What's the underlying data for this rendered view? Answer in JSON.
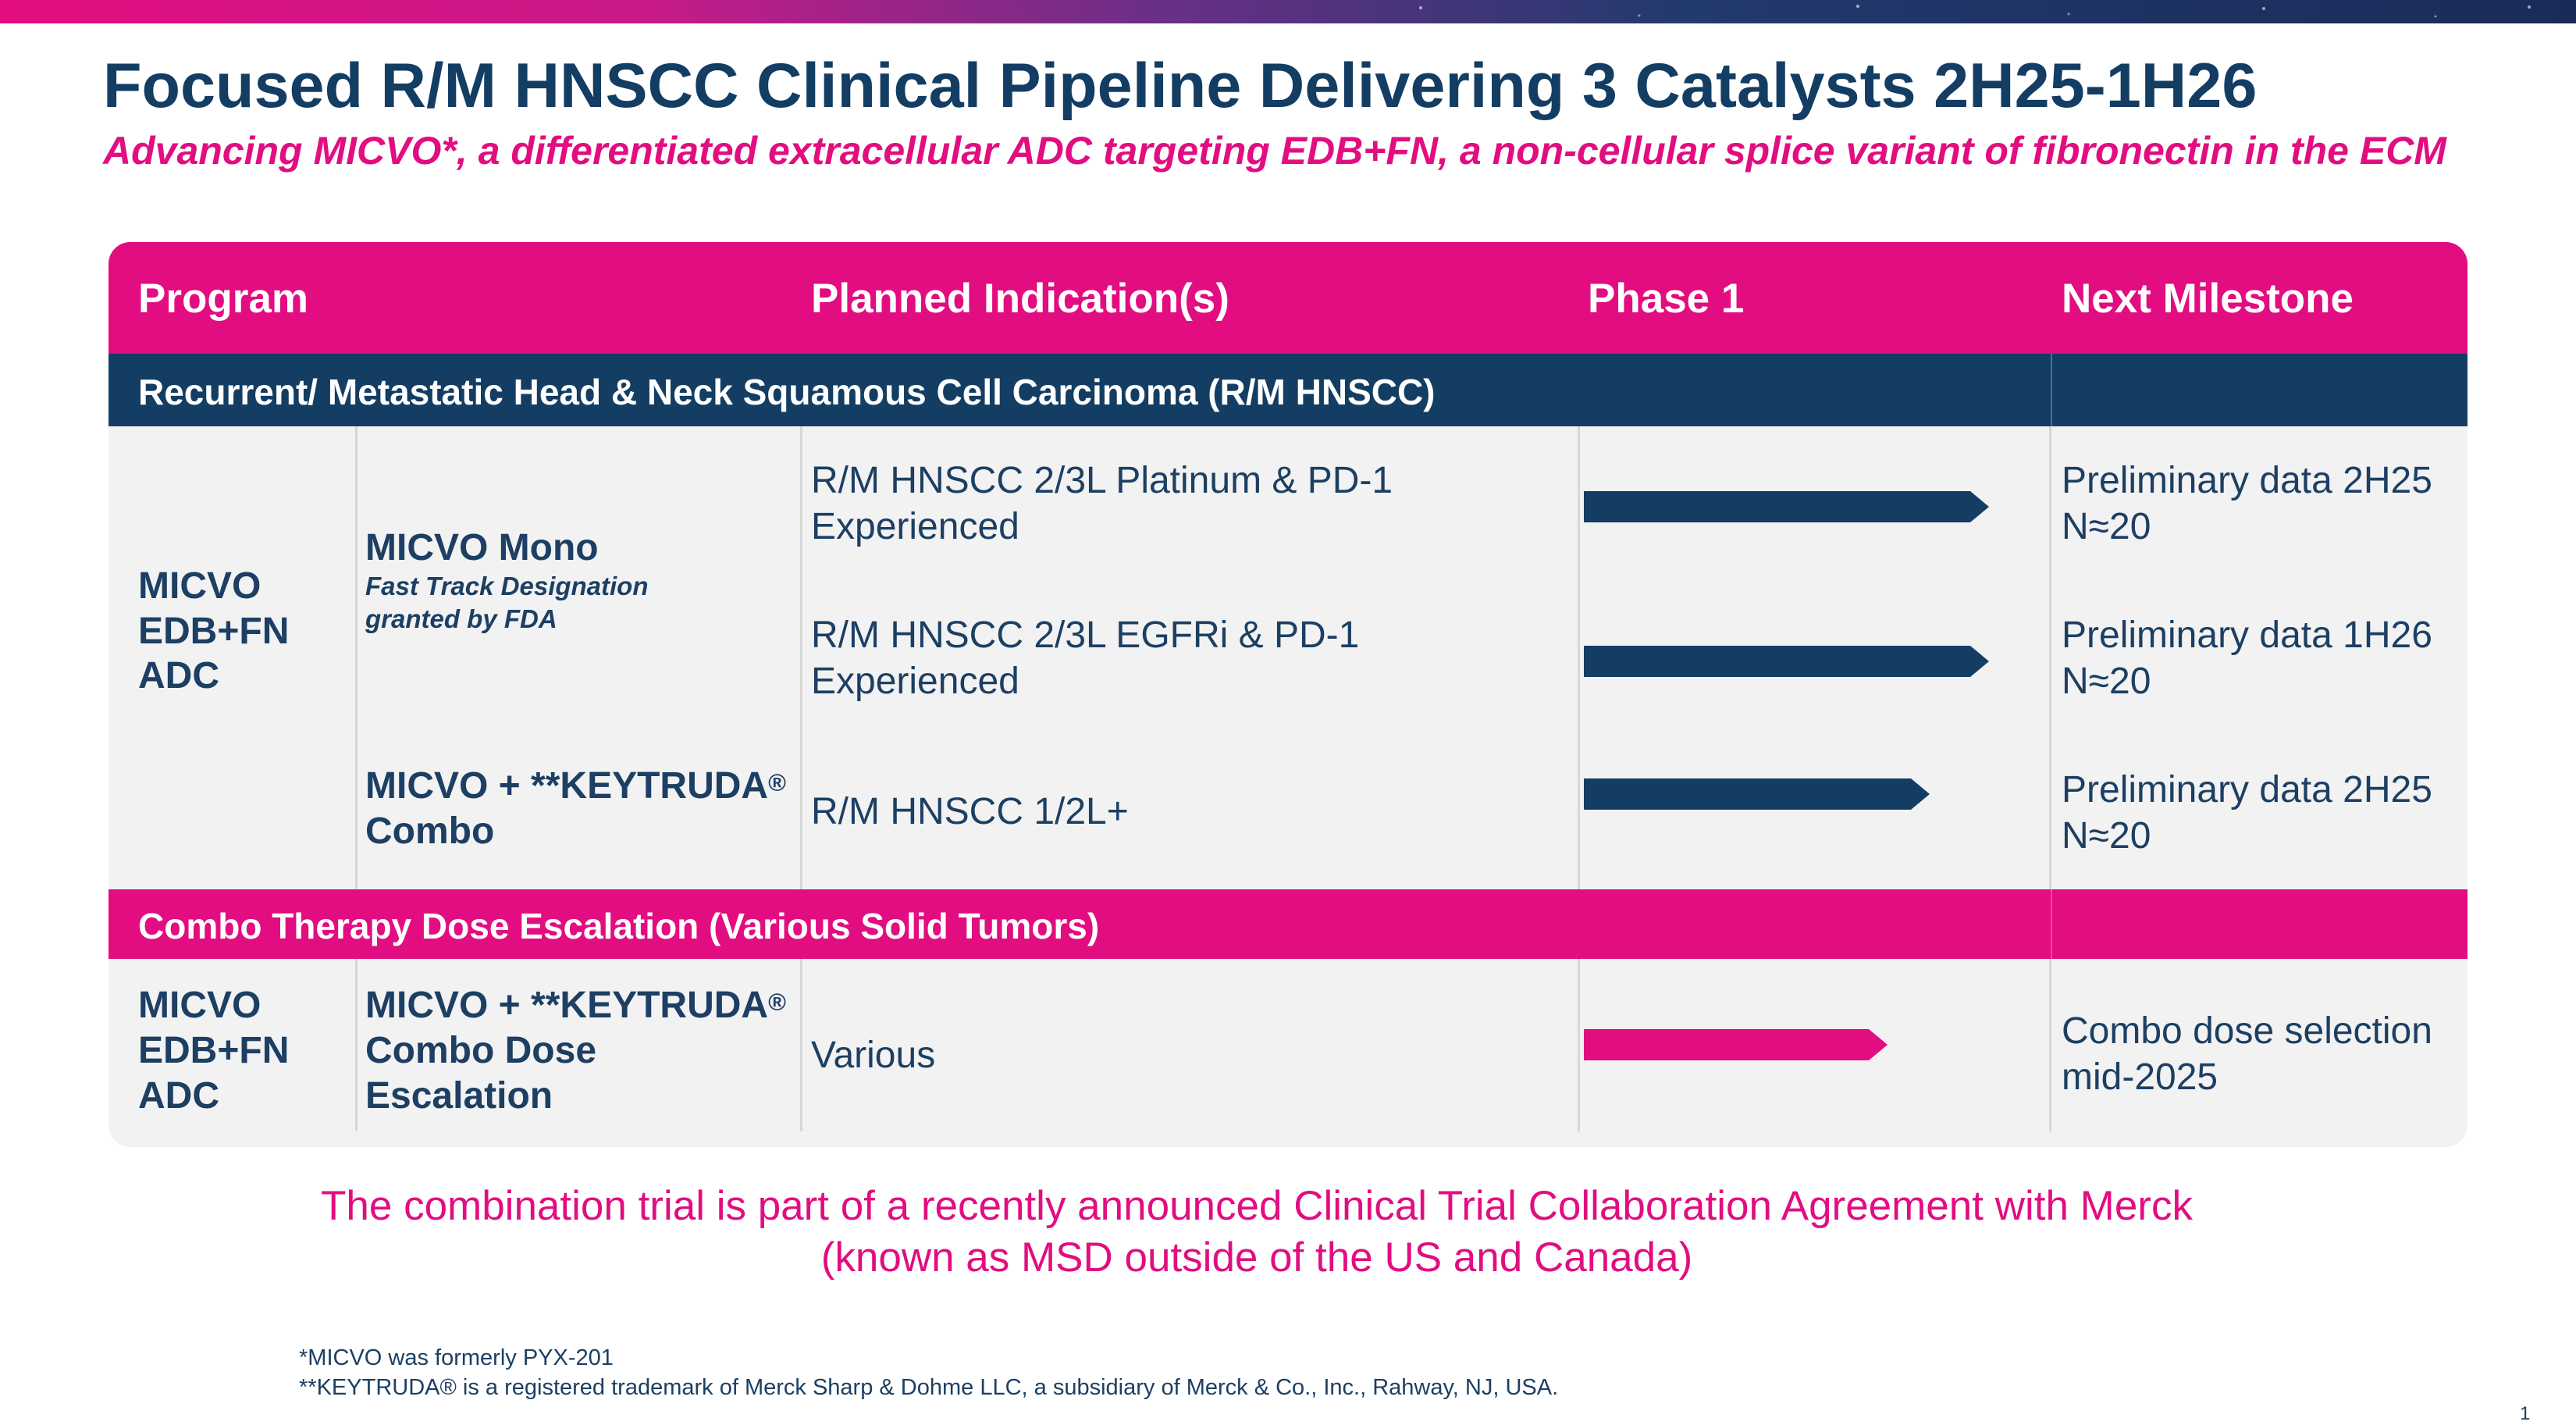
{
  "title": "Focused R/M HNSCC Clinical Pipeline Delivering 3 Catalysts 2H25-1H26",
  "subtitle": "Advancing MICVO*, a differentiated extracellular ADC targeting EDB+FN, a non-cellular splice variant of fibronectin in the ECM",
  "colors": {
    "navy": "#133d63",
    "magenta": "#e20d80",
    "row_bg": "#f2f2f2"
  },
  "table": {
    "headers": {
      "program": "Program",
      "indication": "Planned Indication(s)",
      "phase": "Phase 1",
      "milestone": "Next Milestone"
    },
    "section1": {
      "title": "Recurrent/ Metastatic Head & Neck Squamous Cell Carcinoma (R/M HNSCC)",
      "program": [
        "MICVO",
        "EDB+FN",
        "ADC"
      ],
      "mono": {
        "name": "MICVO Mono",
        "note1": "Fast Track Designation",
        "note2": "granted by FDA"
      },
      "combo": {
        "line1": "MICVO + **KEYTRUDA",
        "reg": "®",
        "line2": "Combo"
      },
      "rows": [
        {
          "indication1": "R/M HNSCC 2/3L Platinum & PD-1",
          "indication2": "Experienced",
          "progress": 0.88,
          "milestone1": "Preliminary data 2H25",
          "milestone2": "N≈20"
        },
        {
          "indication1": "R/M HNSCC 2/3L EGFRi & PD-1",
          "indication2": "Experienced",
          "progress": 0.88,
          "milestone1": "Preliminary data 1H26",
          "milestone2": "N≈20"
        },
        {
          "indication1": "R/M HNSCC 1/2L+",
          "progress": 0.75,
          "milestone1": "Preliminary data 2H25",
          "milestone2": "N≈20"
        }
      ]
    },
    "section2": {
      "title": "Combo Therapy Dose Escalation (Various Solid Tumors)",
      "program": [
        "MICVO",
        "EDB+FN",
        "ADC"
      ],
      "combo": {
        "line1": "MICVO + **KEYTRUDA",
        "reg": "®",
        "line2": "Combo Dose",
        "line3": "Escalation"
      },
      "indication": "Various",
      "progress": 0.66,
      "milestone1": "Combo dose selection",
      "milestone2": "mid-2025"
    }
  },
  "callout": {
    "line1": "The combination trial is part of a recently announced Clinical Trial Collaboration Agreement with Merck",
    "line2": "(known as MSD outside of the US and Canada)"
  },
  "footnotes": [
    "*MICVO was formerly PYX-201",
    "**KEYTRUDA® is a registered trademark of Merck Sharp & Dohme LLC, a subsidiary of Merck & Co., Inc., Rahway, NJ, USA."
  ],
  "page_number": "1"
}
